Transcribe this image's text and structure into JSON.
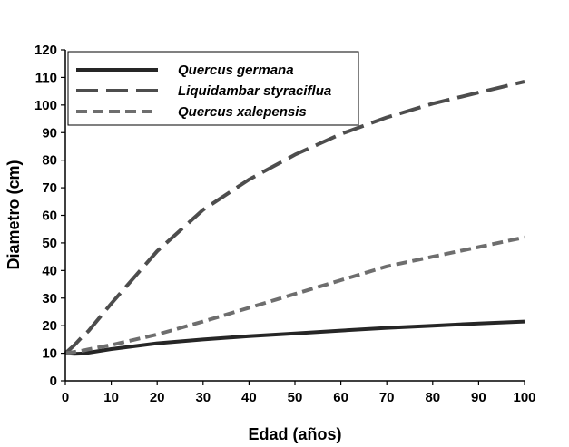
{
  "chart_data": {
    "type": "line",
    "title": "",
    "xlabel": "Edad (años)",
    "ylabel": "Diametro (cm)",
    "xlim": [
      0,
      100
    ],
    "ylim": [
      0,
      120
    ],
    "x_ticks": [
      0,
      10,
      20,
      30,
      40,
      50,
      60,
      70,
      80,
      90,
      100
    ],
    "y_ticks": [
      0,
      10,
      20,
      30,
      40,
      50,
      60,
      70,
      80,
      90,
      100,
      110,
      120
    ],
    "grid": false,
    "legend_position": "top-left",
    "x": [
      0,
      2,
      4,
      5,
      10,
      20,
      30,
      40,
      50,
      60,
      70,
      80,
      90,
      100
    ],
    "series": [
      {
        "name": "Quercus germana",
        "style": "solid",
        "color": "#262626",
        "values": [
          10,
          9.8,
          9.9,
          10.2,
          11.5,
          13.6,
          15,
          16.2,
          17.2,
          18.2,
          19.2,
          20,
          20.8,
          21.5
        ]
      },
      {
        "name": "Liquidambar styraciflua",
        "style": "long-dash",
        "color": "#4d4d4d",
        "values": [
          10,
          13,
          16.5,
          18,
          28,
          47,
          62,
          73,
          82,
          89.5,
          95.5,
          100.5,
          104.5,
          108.5
        ]
      },
      {
        "name": "Quercus xalepensis",
        "style": "short-dash",
        "color": "#6e6e6e",
        "values": [
          10,
          10.5,
          11,
          11.4,
          13,
          16.8,
          21.5,
          26.5,
          31.5,
          36.5,
          41.5,
          45,
          48.5,
          52
        ]
      }
    ]
  }
}
